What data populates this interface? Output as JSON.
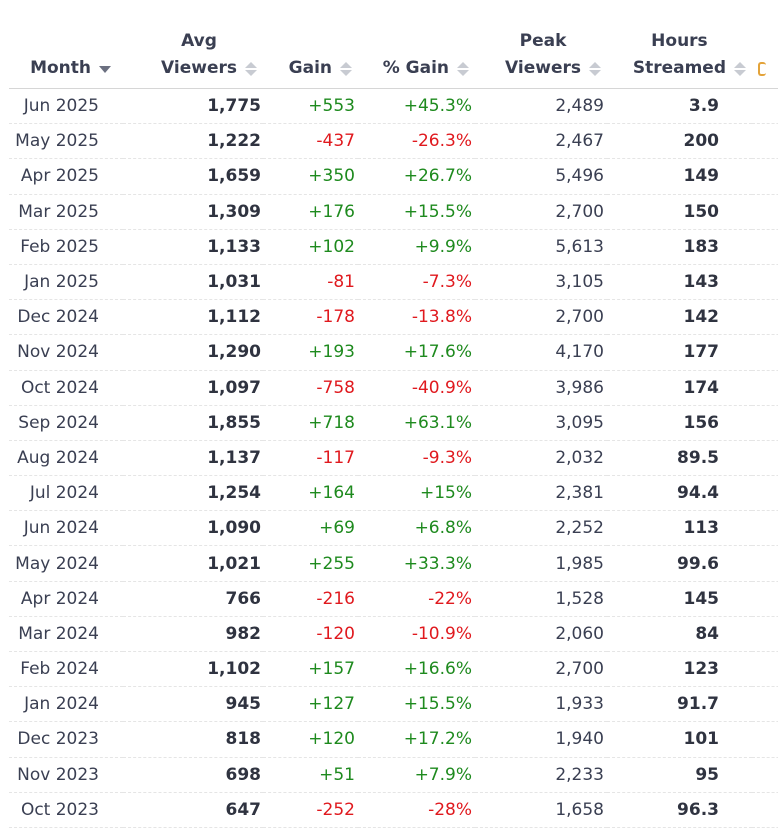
{
  "columns": {
    "month": "Month",
    "avg_viewers_line1": "Avg",
    "avg_viewers_line2": "Viewers",
    "gain": "Gain",
    "pct_gain": "% Gain",
    "peak_viewers_line1": "Peak",
    "peak_viewers_line2": "Viewers",
    "hours_streamed_line1": "Hours",
    "hours_streamed_line2": "Streamed"
  },
  "sort": {
    "column": "month",
    "direction": "descending"
  },
  "colors": {
    "positive": "#1e8a1e",
    "negative": "#e0191e",
    "text": "#2f3340"
  },
  "rows": [
    {
      "month": "Jun 2025",
      "avg_viewers": "1,775",
      "gain": "+553",
      "pct_gain": "+45.3%",
      "peak_viewers": "2,489",
      "hours_streamed": "3.9"
    },
    {
      "month": "May 2025",
      "avg_viewers": "1,222",
      "gain": "-437",
      "pct_gain": "-26.3%",
      "peak_viewers": "2,467",
      "hours_streamed": "200"
    },
    {
      "month": "Apr 2025",
      "avg_viewers": "1,659",
      "gain": "+350",
      "pct_gain": "+26.7%",
      "peak_viewers": "5,496",
      "hours_streamed": "149"
    },
    {
      "month": "Mar 2025",
      "avg_viewers": "1,309",
      "gain": "+176",
      "pct_gain": "+15.5%",
      "peak_viewers": "2,700",
      "hours_streamed": "150"
    },
    {
      "month": "Feb 2025",
      "avg_viewers": "1,133",
      "gain": "+102",
      "pct_gain": "+9.9%",
      "peak_viewers": "5,613",
      "hours_streamed": "183"
    },
    {
      "month": "Jan 2025",
      "avg_viewers": "1,031",
      "gain": "-81",
      "pct_gain": "-7.3%",
      "peak_viewers": "3,105",
      "hours_streamed": "143"
    },
    {
      "month": "Dec 2024",
      "avg_viewers": "1,112",
      "gain": "-178",
      "pct_gain": "-13.8%",
      "peak_viewers": "2,700",
      "hours_streamed": "142"
    },
    {
      "month": "Nov 2024",
      "avg_viewers": "1,290",
      "gain": "+193",
      "pct_gain": "+17.6%",
      "peak_viewers": "4,170",
      "hours_streamed": "177"
    },
    {
      "month": "Oct 2024",
      "avg_viewers": "1,097",
      "gain": "-758",
      "pct_gain": "-40.9%",
      "peak_viewers": "3,986",
      "hours_streamed": "174"
    },
    {
      "month": "Sep 2024",
      "avg_viewers": "1,855",
      "gain": "+718",
      "pct_gain": "+63.1%",
      "peak_viewers": "3,095",
      "hours_streamed": "156"
    },
    {
      "month": "Aug 2024",
      "avg_viewers": "1,137",
      "gain": "-117",
      "pct_gain": "-9.3%",
      "peak_viewers": "2,032",
      "hours_streamed": "89.5"
    },
    {
      "month": "Jul 2024",
      "avg_viewers": "1,254",
      "gain": "+164",
      "pct_gain": "+15%",
      "peak_viewers": "2,381",
      "hours_streamed": "94.4"
    },
    {
      "month": "Jun 2024",
      "avg_viewers": "1,090",
      "gain": "+69",
      "pct_gain": "+6.8%",
      "peak_viewers": "2,252",
      "hours_streamed": "113"
    },
    {
      "month": "May 2024",
      "avg_viewers": "1,021",
      "gain": "+255",
      "pct_gain": "+33.3%",
      "peak_viewers": "1,985",
      "hours_streamed": "99.6"
    },
    {
      "month": "Apr 2024",
      "avg_viewers": "766",
      "gain": "-216",
      "pct_gain": "-22%",
      "peak_viewers": "1,528",
      "hours_streamed": "145"
    },
    {
      "month": "Mar 2024",
      "avg_viewers": "982",
      "gain": "-120",
      "pct_gain": "-10.9%",
      "peak_viewers": "2,060",
      "hours_streamed": "84"
    },
    {
      "month": "Feb 2024",
      "avg_viewers": "1,102",
      "gain": "+157",
      "pct_gain": "+16.6%",
      "peak_viewers": "2,700",
      "hours_streamed": "123"
    },
    {
      "month": "Jan 2024",
      "avg_viewers": "945",
      "gain": "+127",
      "pct_gain": "+15.5%",
      "peak_viewers": "1,933",
      "hours_streamed": "91.7"
    },
    {
      "month": "Dec 2023",
      "avg_viewers": "818",
      "gain": "+120",
      "pct_gain": "+17.2%",
      "peak_viewers": "1,940",
      "hours_streamed": "101"
    },
    {
      "month": "Nov 2023",
      "avg_viewers": "698",
      "gain": "+51",
      "pct_gain": "+7.9%",
      "peak_viewers": "2,233",
      "hours_streamed": "95"
    },
    {
      "month": "Oct 2023",
      "avg_viewers": "647",
      "gain": "-252",
      "pct_gain": "-28%",
      "peak_viewers": "1,658",
      "hours_streamed": "96.3"
    }
  ]
}
